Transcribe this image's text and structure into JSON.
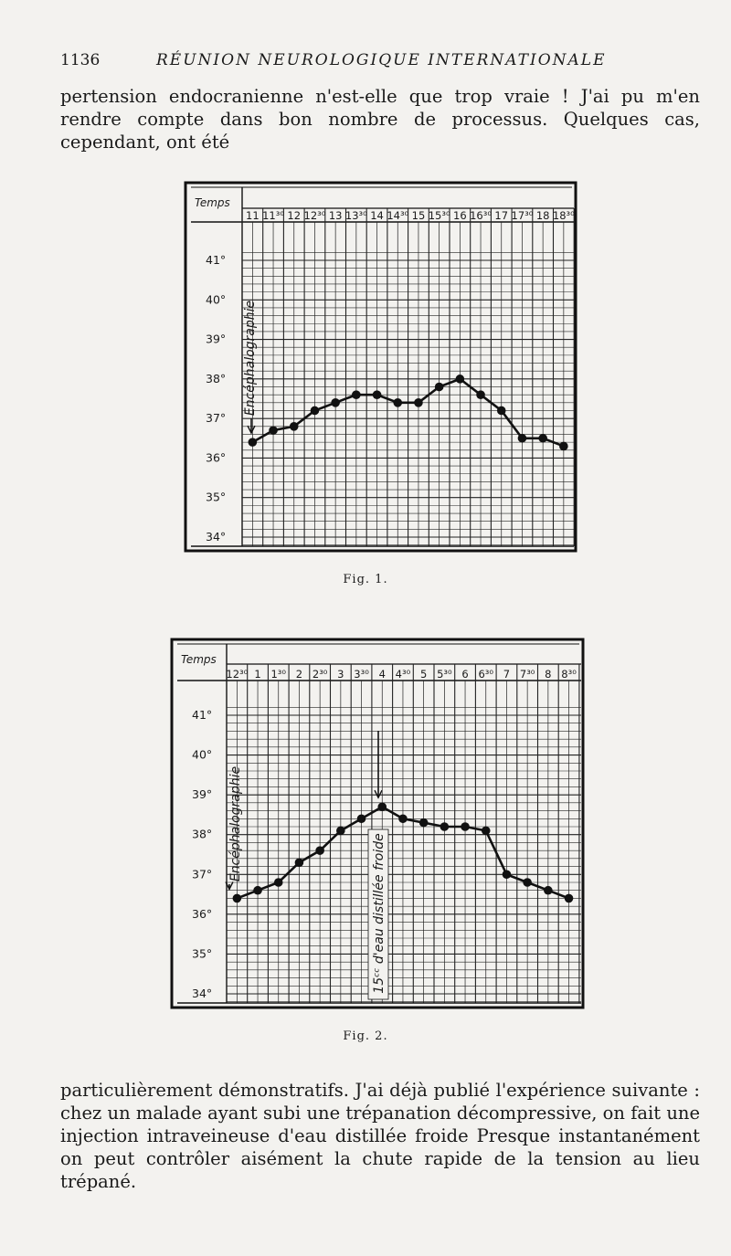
{
  "header": {
    "page_number": "1136",
    "running_title": "RÉUNION NEUROLOGIQUE INTERNATIONALE"
  },
  "paragraph_top": "pertension endocranienne n'est-elle que trop vraie ! J'ai pu m'en rendre compte dans bon nombre de processus. Quelques cas, cependant, ont été",
  "paragraph_bottom": "particulièrement démonstratifs. J'ai déjà publié l'expérience suivante : chez un malade ayant subi une trépanation décompressive, on fait une injection intraveineuse d'eau distillée froide Presque instantanément on peut contrôler aisément la chute rapide de la tension au lieu trépané.",
  "chart_data": [
    {
      "type": "line",
      "caption": "Fig. 1.",
      "corner_label": "Temps",
      "x_tick_labels": [
        "11",
        "11³⁰",
        "12",
        "12³⁰",
        "13",
        "13³⁰",
        "14",
        "14³⁰",
        "15",
        "15³⁰",
        "16",
        "16³⁰",
        "17",
        "17³⁰",
        "18",
        "18³⁰"
      ],
      "y_tick_labels": [
        "41°",
        "40°",
        "39°",
        "38°",
        "37°",
        "36°",
        "35°",
        "34°"
      ],
      "ylim": [
        34,
        42
      ],
      "x": [
        11,
        11.5,
        12,
        12.5,
        13,
        13.5,
        14,
        14.5,
        15,
        15.5,
        16,
        16.5,
        17,
        17.5,
        18,
        18.5
      ],
      "y": [
        36.4,
        36.7,
        36.8,
        37.2,
        37.4,
        37.6,
        37.6,
        37.4,
        37.4,
        37.8,
        38.0,
        37.6,
        37.2,
        36.5,
        36.5,
        36.3
      ],
      "annotations": [
        {
          "text": "Encéphalographie",
          "x": 11
        }
      ]
    },
    {
      "type": "line",
      "caption": "Fig. 2.",
      "corner_label": "Temps",
      "x_tick_labels": [
        "12³⁰",
        "1",
        "1³⁰",
        "2",
        "2³⁰",
        "3",
        "3³⁰",
        "4",
        "4³⁰",
        "5",
        "5³⁰",
        "6",
        "6³⁰",
        "7",
        "7³⁰",
        "8",
        "8³⁰"
      ],
      "y_tick_labels": [
        "41°",
        "40°",
        "39°",
        "38°",
        "37°",
        "36°",
        "35°",
        "34°"
      ],
      "ylim": [
        34,
        42
      ],
      "x": [
        0.5,
        1,
        1.5,
        2,
        2.5,
        3,
        3.5,
        4,
        4.5,
        5,
        5.5,
        6,
        6.5,
        7,
        7.5,
        8,
        8.5
      ],
      "y": [
        36.4,
        36.6,
        36.8,
        37.3,
        37.6,
        38.1,
        38.4,
        38.7,
        38.4,
        38.3,
        38.2,
        38.2,
        38.1,
        37.0,
        36.8,
        36.6,
        36.4
      ],
      "annotations": [
        {
          "text": "Encéphalographie",
          "x": 0.5
        },
        {
          "text": "15ᶜᶜ d'eau distillée froide",
          "x": 4
        }
      ]
    }
  ]
}
